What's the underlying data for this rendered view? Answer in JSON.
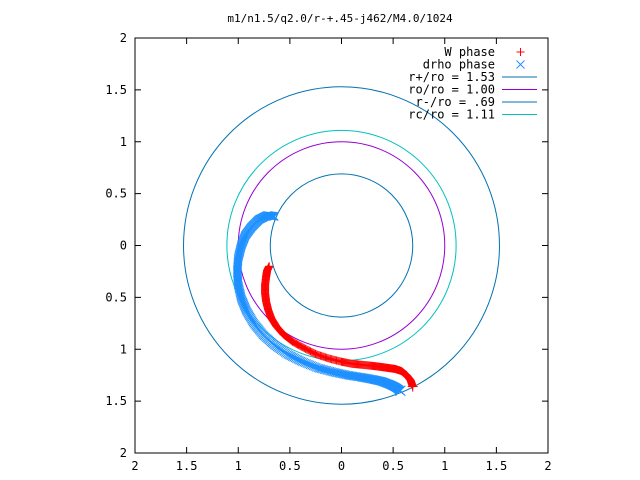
{
  "chart_data": {
    "type": "scatter",
    "title": "m1/n1.5/q2.0/r-+.45-j462/M4.0/1024",
    "xlabel": "",
    "ylabel": "",
    "xlim": [
      -2,
      2
    ],
    "ylim": [
      -2,
      2
    ],
    "x_ticks": [
      -2,
      -1.5,
      -1,
      -0.5,
      0,
      0.5,
      1,
      1.5,
      2
    ],
    "y_ticks": [
      -2,
      -1.5,
      -1,
      -0.5,
      0,
      0.5,
      1,
      1.5,
      2
    ],
    "x_tick_labels": [
      "2",
      "1.5",
      "1",
      "0.5",
      "0",
      "0.5",
      "1",
      "1.5",
      "2"
    ],
    "y_tick_labels": [
      "2",
      "1.5",
      "1",
      "0.5",
      "0",
      "0.5",
      "1",
      "1.5",
      "2"
    ],
    "grid": false,
    "legend_position": "top-right",
    "series": [
      {
        "name": "W phase",
        "marker": "plus",
        "color": "#ff0000",
        "points": [
          [
            -0.7,
            -0.2
          ],
          [
            -0.72,
            -0.24
          ],
          [
            -0.73,
            -0.3
          ],
          [
            -0.74,
            -0.38
          ],
          [
            -0.74,
            -0.46
          ],
          [
            -0.73,
            -0.54
          ],
          [
            -0.71,
            -0.62
          ],
          [
            -0.68,
            -0.7
          ],
          [
            -0.63,
            -0.78
          ],
          [
            -0.56,
            -0.86
          ],
          [
            -0.47,
            -0.93
          ],
          [
            -0.36,
            -0.99
          ],
          [
            -0.24,
            -1.05
          ],
          [
            -0.12,
            -1.09
          ],
          [
            0.0,
            -1.12
          ],
          [
            0.1,
            -1.14
          ],
          [
            0.2,
            -1.15
          ],
          [
            0.3,
            -1.16
          ],
          [
            0.38,
            -1.17
          ],
          [
            0.45,
            -1.18
          ],
          [
            0.52,
            -1.19
          ],
          [
            0.58,
            -1.21
          ],
          [
            0.63,
            -1.25
          ],
          [
            0.67,
            -1.3
          ],
          [
            0.69,
            -1.36
          ]
        ]
      },
      {
        "name": "drho phase",
        "marker": "cross",
        "color": "#1e90ff",
        "points": [
          [
            -0.65,
            0.28
          ],
          [
            -0.72,
            0.29
          ],
          [
            -0.8,
            0.25
          ],
          [
            -0.87,
            0.18
          ],
          [
            -0.93,
            0.1
          ],
          [
            -0.97,
            0.0
          ],
          [
            -1.0,
            -0.12
          ],
          [
            -1.01,
            -0.25
          ],
          [
            -1.0,
            -0.38
          ],
          [
            -0.97,
            -0.51
          ],
          [
            -0.92,
            -0.63
          ],
          [
            -0.85,
            -0.75
          ],
          [
            -0.76,
            -0.86
          ],
          [
            -0.65,
            -0.96
          ],
          [
            -0.52,
            -1.05
          ],
          [
            -0.38,
            -1.12
          ],
          [
            -0.23,
            -1.18
          ],
          [
            -0.08,
            -1.22
          ],
          [
            0.06,
            -1.25
          ],
          [
            0.19,
            -1.27
          ],
          [
            0.3,
            -1.29
          ],
          [
            0.39,
            -1.31
          ],
          [
            0.47,
            -1.34
          ],
          [
            0.53,
            -1.37
          ],
          [
            0.57,
            -1.4
          ]
        ]
      },
      {
        "name": "r+/ro = 1.53",
        "type": "circle",
        "radius": 1.53,
        "color": "#0072b2"
      },
      {
        "name": "ro/ro = 1.00",
        "type": "circle",
        "radius": 1.0,
        "color": "#9400d3"
      },
      {
        "name": "r-/ro = .69",
        "type": "circle",
        "radius": 0.69,
        "color": "#0072b2"
      },
      {
        "name": "rc/ro = 1.11",
        "type": "circle",
        "radius": 1.11,
        "color": "#00c0c0"
      }
    ]
  }
}
